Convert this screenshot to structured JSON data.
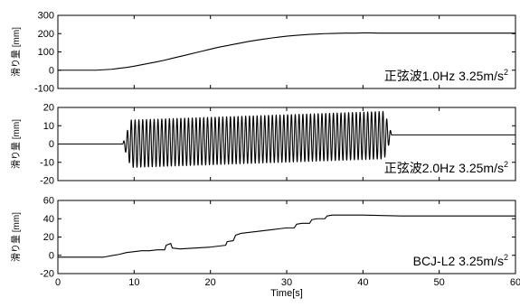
{
  "chart_data": [
    {
      "type": "line",
      "ylabel": "滑り量 [mm]",
      "annotation": "正弦波1.0Hz 3.25m/s",
      "annotation_sup": "2",
      "xlim": [
        0,
        60
      ],
      "ylim": [
        -100,
        300
      ],
      "yticks": [
        -100,
        0,
        100,
        200,
        300
      ],
      "grid": false,
      "series": [
        {
          "x": [
            0,
            5,
            7,
            8,
            9,
            10,
            11,
            12,
            13,
            14,
            15,
            16,
            17,
            18,
            19,
            20,
            21,
            22,
            23,
            24,
            25,
            26,
            27,
            28,
            29,
            30,
            31,
            32,
            33,
            34,
            35,
            36,
            37,
            38,
            39,
            40,
            41,
            42,
            43,
            44,
            50,
            60
          ],
          "values": [
            0,
            0,
            5,
            10,
            15,
            22,
            30,
            38,
            46,
            55,
            65,
            75,
            85,
            95,
            105,
            115,
            125,
            133,
            141,
            149,
            157,
            164,
            170,
            176,
            181,
            186,
            190,
            193,
            196,
            198,
            200,
            201,
            202,
            203,
            203,
            204,
            204,
            203,
            203,
            203,
            203,
            203
          ]
        }
      ]
    },
    {
      "type": "line",
      "ylabel": "滑り量 [mm]",
      "annotation": "正弦波2.0Hz 3.25m/s",
      "annotation_sup": "2",
      "xlim": [
        0,
        60
      ],
      "ylim": [
        -20,
        20
      ],
      "yticks": [
        -20,
        -10,
        0,
        10,
        20
      ],
      "grid": false,
      "signal": {
        "offset_start": 0,
        "offset_end": 5,
        "onset": 8.5,
        "ramp_end": 9.6,
        "decay_start": 42.8,
        "end": 43.8,
        "amplitude": 13,
        "frequency_hz": 2.0
      }
    },
    {
      "type": "line",
      "ylabel": "滑り量 [mm]",
      "annotation": "BCJ-L2 3.25m/s",
      "annotation_sup": "2",
      "xlim": [
        0,
        60
      ],
      "ylim": [
        -20,
        60
      ],
      "yticks": [
        -20,
        0,
        20,
        40,
        60
      ],
      "xticks": [
        0,
        10,
        20,
        30,
        40,
        50,
        60
      ],
      "xlabel": "Time[s]",
      "grid": false,
      "series": [
        {
          "x": [
            0,
            6,
            8,
            9,
            10,
            11,
            12,
            13,
            14,
            14.2,
            14.8,
            15,
            16,
            18,
            20,
            22,
            22.2,
            23,
            23.3,
            24,
            25,
            26,
            27,
            28,
            29,
            30,
            31,
            31.3,
            32,
            33,
            33.3,
            34,
            35,
            35.3,
            36,
            40,
            45,
            60
          ],
          "values": [
            -2,
            -2,
            1,
            3,
            4,
            5,
            5,
            6,
            6,
            11,
            13,
            8,
            7,
            8,
            9,
            11,
            15,
            16,
            22,
            24,
            25,
            26,
            27,
            28,
            29,
            30,
            30,
            34,
            35,
            35,
            39,
            40,
            40,
            43,
            44,
            44,
            43,
            43
          ]
        }
      ]
    }
  ]
}
